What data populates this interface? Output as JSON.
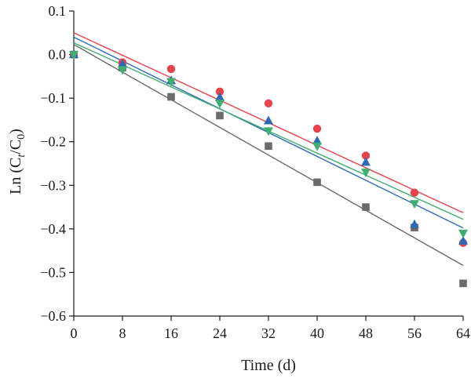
{
  "chart_data": {
    "type": "scatter",
    "title": "",
    "xlabel": "Time (d)",
    "ylabel_parts": {
      "prefix": "Ln (C",
      "sub1": "t",
      "mid": "/C",
      "sub2": "0",
      "suffix": ")"
    },
    "xlim": [
      0,
      64
    ],
    "ylim": [
      -0.6,
      0.1
    ],
    "xticks": [
      0,
      8,
      16,
      24,
      32,
      40,
      48,
      56,
      64
    ],
    "yticks": [
      0.1,
      0.0,
      -0.1,
      -0.2,
      -0.3,
      -0.4,
      -0.5,
      -0.6
    ],
    "ytick_labels": [
      "0.1",
      "0.0",
      "−0.1",
      "−0.2",
      "−0.3",
      "−0.4",
      "−0.5",
      "−0.6"
    ],
    "x": [
      0,
      8,
      16,
      24,
      32,
      40,
      48,
      56,
      64
    ],
    "series": [
      {
        "marker": "square",
        "color": "#6b6b6b",
        "values": [
          0.0,
          -0.03,
          -0.097,
          -0.14,
          -0.21,
          -0.293,
          -0.35,
          -0.397,
          -0.525
        ],
        "fit": [
          0.023,
          -0.484
        ]
      },
      {
        "marker": "circle",
        "color": "#e8434a",
        "values": [
          0.0,
          -0.018,
          -0.033,
          -0.085,
          -0.112,
          -0.17,
          -0.232,
          -0.317,
          -0.432
        ],
        "fit": [
          0.05,
          -0.363
        ]
      },
      {
        "marker": "triangle-up",
        "color": "#2e6ab4",
        "values": [
          0.0,
          -0.022,
          -0.06,
          -0.098,
          -0.152,
          -0.198,
          -0.247,
          -0.39,
          -0.428
        ],
        "fit": [
          0.04,
          -0.398
        ]
      },
      {
        "marker": "triangle-down",
        "color": "#3fae6e",
        "values": [
          0.0,
          -0.035,
          -0.062,
          -0.112,
          -0.175,
          -0.21,
          -0.27,
          -0.342,
          -0.41
        ],
        "fit": [
          0.027,
          -0.378
        ]
      }
    ]
  }
}
